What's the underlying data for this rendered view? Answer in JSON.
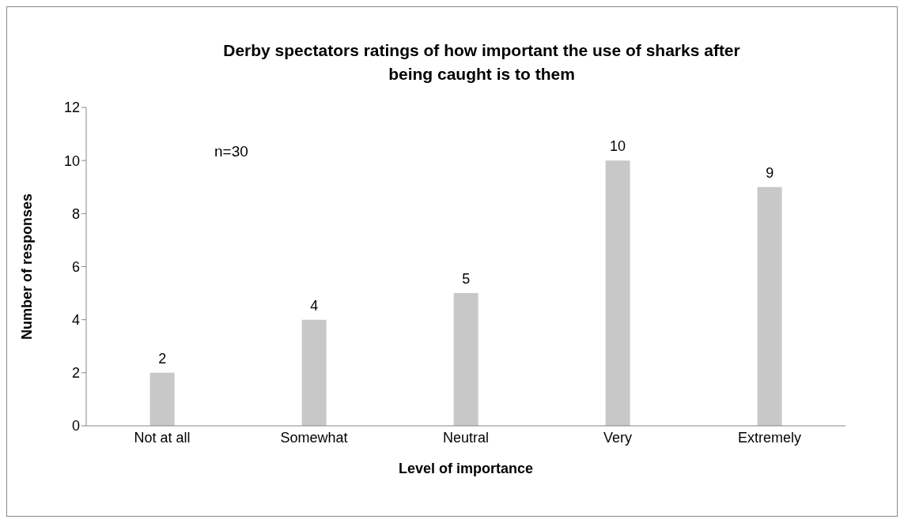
{
  "chart_data": {
    "type": "bar",
    "title": "Derby spectators ratings of how important the use of sharks after being caught is to them",
    "xlabel": "Level of importance",
    "ylabel": "Number of responses",
    "categories": [
      "Not at all",
      "Somewhat",
      "Neutral",
      "Very",
      "Extremely"
    ],
    "values": [
      2,
      4,
      5,
      10,
      9
    ],
    "color": "#c8c8c8",
    "ylim": [
      0,
      12
    ],
    "yticks": [
      0,
      2,
      4,
      6,
      8,
      10,
      12
    ],
    "grid": false,
    "legend": false,
    "data_labels": true,
    "annotations": [
      "n=30"
    ]
  }
}
